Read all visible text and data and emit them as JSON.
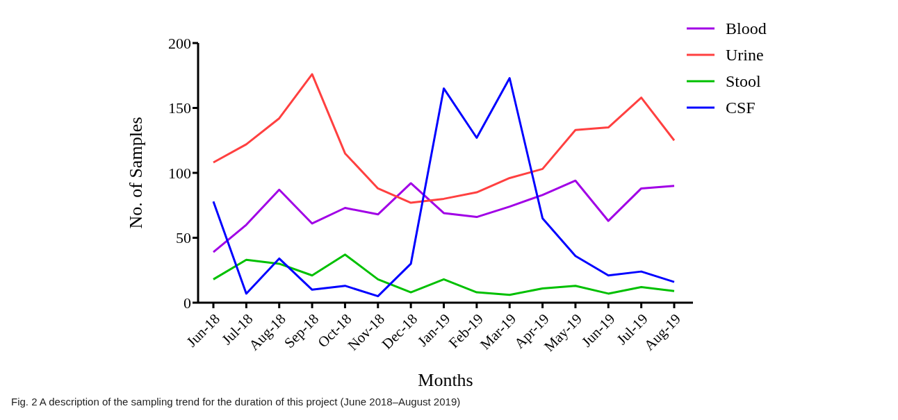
{
  "chart_data": {
    "type": "line",
    "xlabel": "Months",
    "ylabel": "No. of Samples",
    "categories": [
      "Jun-18",
      "Jul-18",
      "Aug-18",
      "Sep-18",
      "Oct-18",
      "Nov-18",
      "Dec-18",
      "Jan-19",
      "Feb-19",
      "Mar-19",
      "Apr-19",
      "May-19",
      "Jun-19",
      "Jul-19",
      "Aug-19"
    ],
    "series": [
      {
        "name": "Blood",
        "color": "#a100e6",
        "values": [
          39,
          60,
          87,
          61,
          73,
          68,
          92,
          69,
          66,
          74,
          83,
          94,
          63,
          88,
          90
        ]
      },
      {
        "name": "Urine",
        "color": "#ff4040",
        "values": [
          108,
          122,
          142,
          176,
          115,
          88,
          77,
          80,
          85,
          96,
          103,
          133,
          135,
          158,
          125
        ]
      },
      {
        "name": "Stool",
        "color": "#00c000",
        "values": [
          18,
          33,
          30,
          21,
          37,
          18,
          8,
          18,
          8,
          6,
          11,
          13,
          7,
          12,
          9
        ]
      },
      {
        "name": "CSF",
        "color": "#0000ff",
        "values": [
          78,
          7,
          34,
          10,
          13,
          5,
          30,
          165,
          127,
          173,
          65,
          36,
          21,
          24,
          16
        ]
      }
    ],
    "ylim": [
      0,
      200
    ],
    "yticks": [
      0,
      50,
      100,
      150,
      200
    ],
    "grid": false,
    "legend": "top right",
    "marker": "none",
    "line_style": "solid",
    "annotations": [
      "Fig. 2 A description of the sampling trend for the duration of this project (June 2018–August 2019)"
    ]
  }
}
